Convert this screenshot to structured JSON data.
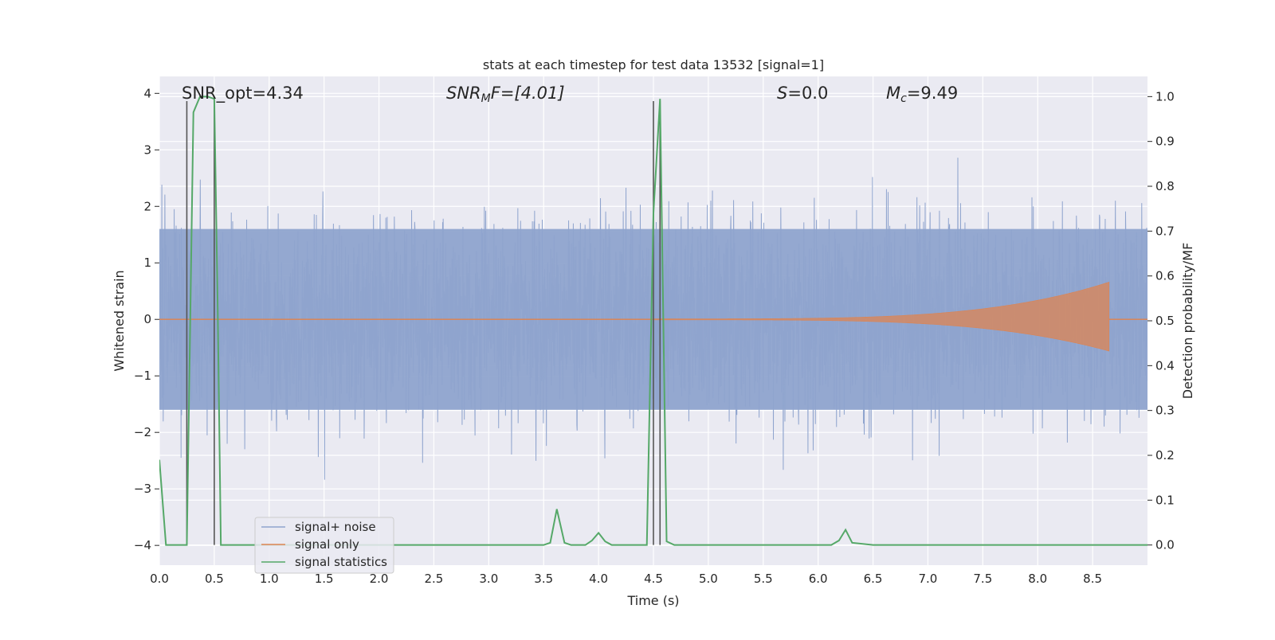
{
  "chart_data": {
    "type": "line",
    "title": "stats at each timestep for test data 13532 [signal=1]",
    "xlabel": "Time (s)",
    "ylabel_left": "Whitened strain",
    "ylabel_right": "Detection probability/MF",
    "xlim": [
      0.0,
      9.0
    ],
    "ylim_left": [
      -4.35,
      4.3
    ],
    "ylim_right": [
      -0.045,
      1.045
    ],
    "xticks": [
      0.0,
      0.5,
      1.0,
      1.5,
      2.0,
      2.5,
      3.0,
      3.5,
      4.0,
      4.5,
      5.0,
      5.5,
      6.0,
      6.5,
      7.0,
      7.5,
      8.0,
      8.5
    ],
    "xtick_labels": [
      "0.0",
      "0.5",
      "1.0",
      "1.5",
      "2.0",
      "2.5",
      "3.0",
      "3.5",
      "4.0",
      "4.5",
      "5.0",
      "5.5",
      "6.0",
      "6.5",
      "7.0",
      "7.5",
      "8.0",
      "8.5"
    ],
    "yticks_left": [
      -4,
      -3,
      -2,
      -1,
      0,
      1,
      2,
      3,
      4
    ],
    "ytick_labels_left": [
      "−4",
      "−3",
      "−2",
      "−1",
      "0",
      "1",
      "2",
      "3",
      "4"
    ],
    "yticks_right": [
      0.0,
      0.1,
      0.2,
      0.3,
      0.4,
      0.5,
      0.6,
      0.7,
      0.8,
      0.9,
      1.0
    ],
    "ytick_labels_right": [
      "0.0",
      "0.1",
      "0.2",
      "0.3",
      "0.4",
      "0.5",
      "0.6",
      "0.7",
      "0.8",
      "0.9",
      "1.0"
    ],
    "grid": true,
    "legend_position": "lower-left",
    "annotations": {
      "snr_opt": "SNR_opt=4.34",
      "snr_mf_main": "SNR",
      "snr_mf_sub": "M",
      "snr_mf_rest": "F=[4.01]",
      "s_var": "S",
      "s_val": "=0.0",
      "mc_main": "M",
      "mc_sub": "c",
      "mc_val": "=9.49"
    },
    "series": [
      {
        "name": "signal+ noise",
        "color": "#8fa4ce",
        "description_values": "noise envelope: band core ≈ ±1.6, spikes up to ≈ ±3.7",
        "core_amplitude": 1.6,
        "peak_amplitude": 3.7
      },
      {
        "name": "signal only",
        "color": "#dd8452",
        "chirp_start": 4.5,
        "chirp_end": 8.65,
        "chirp_peak_amplitude": 0.65
      },
      {
        "name": "signal statistics",
        "color": "#55a868",
        "axis": "right",
        "x": [
          0.0,
          0.06,
          0.25,
          0.31,
          0.37,
          0.44,
          0.5,
          0.53,
          0.56,
          0.6,
          3.5,
          3.56,
          3.62,
          3.69,
          3.75,
          3.88,
          3.94,
          4.0,
          4.06,
          4.12,
          4.44,
          4.5,
          4.56,
          4.62,
          4.69,
          6.12,
          6.19,
          6.25,
          6.31,
          6.5,
          9.0
        ],
        "y": [
          0.19,
          0.0,
          0.0,
          0.965,
          1.0,
          1.0,
          0.995,
          0.55,
          0.0,
          0.0,
          0.0,
          0.005,
          0.08,
          0.005,
          0.0,
          0.0,
          0.01,
          0.027,
          0.008,
          0.0,
          0.0,
          0.74,
          0.995,
          0.008,
          0.0,
          0.0,
          0.01,
          0.034,
          0.005,
          0.0,
          0.0
        ]
      }
    ],
    "vertical_lines": [
      0.25,
      0.5,
      4.5,
      4.56
    ]
  }
}
